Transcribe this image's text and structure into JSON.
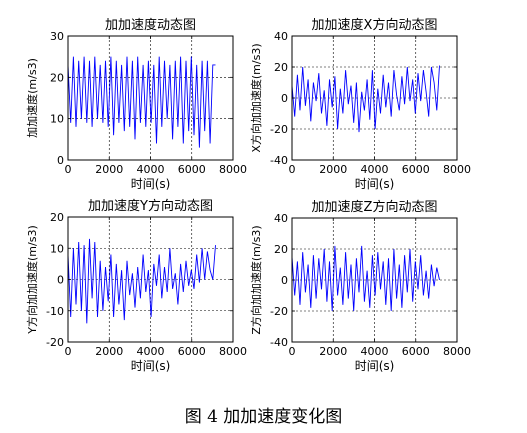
{
  "figure_caption": "图 4 加加速度变化图",
  "chart_data": [
    {
      "type": "line",
      "title": "加加速度动态图",
      "xlabel": "时间(s)",
      "ylabel": "加加速度(m/s3)",
      "xlim": [
        0,
        8000
      ],
      "ylim": [
        0,
        30
      ],
      "xticks": [
        0,
        2000,
        4000,
        6000,
        8000
      ],
      "yticks": [
        0,
        10,
        20,
        30
      ],
      "grid": true,
      "line_color": "#0000ff",
      "series": [
        {
          "x": [
            0,
            130,
            260,
            390,
            520,
            650,
            780,
            910,
            1040,
            1170,
            1300,
            1430,
            1560,
            1690,
            1820,
            1950,
            2080,
            2210,
            2340,
            2470,
            2600,
            2730,
            2860,
            2990,
            3120,
            3250,
            3380,
            3510,
            3640,
            3770,
            3900,
            4030,
            4160,
            4290,
            4420,
            4550,
            4680,
            4810,
            4940,
            5070,
            5200,
            5330,
            5460,
            5590,
            5720,
            5850,
            5980,
            6110,
            6240,
            6370,
            6500,
            6630,
            6760,
            6890,
            7020,
            7150
          ],
          "y": [
            23,
            9,
            25,
            8,
            24,
            10,
            25,
            9,
            24,
            8,
            25,
            10,
            23,
            9,
            24,
            8,
            25,
            6,
            24,
            9,
            23,
            7,
            25,
            8,
            24,
            5,
            25,
            9,
            23,
            8,
            24,
            9,
            23,
            4,
            25,
            8,
            24,
            10,
            23,
            5,
            24,
            8,
            25,
            4,
            24,
            7,
            25,
            6,
            23,
            3,
            24,
            7,
            24,
            4,
            23,
            23
          ]
        }
      ]
    },
    {
      "type": "line",
      "title": "加加速度X方向动态图",
      "xlabel": "时间(s)",
      "ylabel": "X方向加加速度(m/s3)",
      "xlim": [
        0,
        8000
      ],
      "ylim": [
        -40,
        40
      ],
      "xticks": [
        0,
        2000,
        4000,
        6000,
        8000
      ],
      "yticks": [
        -40,
        -20,
        0,
        20,
        40
      ],
      "grid": true,
      "line_color": "#0000ff",
      "series": [
        {
          "x": [
            0,
            130,
            260,
            390,
            520,
            650,
            780,
            910,
            1040,
            1170,
            1300,
            1430,
            1560,
            1690,
            1820,
            1950,
            2080,
            2210,
            2340,
            2470,
            2600,
            2730,
            2860,
            2990,
            3120,
            3250,
            3380,
            3510,
            3640,
            3770,
            3900,
            4030,
            4160,
            4290,
            4420,
            4550,
            4680,
            4810,
            4940,
            5070,
            5200,
            5330,
            5460,
            5590,
            5720,
            5850,
            5980,
            6110,
            6240,
            6370,
            6500,
            6630,
            6760,
            6890,
            7020,
            7150
          ],
          "y": [
            8,
            -12,
            15,
            -8,
            20,
            -5,
            12,
            -15,
            10,
            -2,
            16,
            -10,
            5,
            -18,
            12,
            -6,
            14,
            -20,
            6,
            -10,
            18,
            -4,
            8,
            -16,
            10,
            -22,
            4,
            -8,
            12,
            -14,
            18,
            -20,
            6,
            -10,
            15,
            -6,
            10,
            -12,
            18,
            2,
            -8,
            14,
            -4,
            20,
            -2,
            12,
            -10,
            16,
            -2,
            18,
            4,
            -12,
            20,
            10,
            -8,
            21
          ]
        }
      ]
    },
    {
      "type": "line",
      "title": "加加速度Y方向动态图",
      "xlabel": "时间(s)",
      "ylabel": "Y方向加加速度(m/s3)",
      "xlim": [
        0,
        8000
      ],
      "ylim": [
        -20,
        20
      ],
      "xticks": [
        0,
        2000,
        4000,
        6000,
        8000
      ],
      "yticks": [
        -20,
        -10,
        0,
        10,
        20
      ],
      "grid": true,
      "line_color": "#0000ff",
      "series": [
        {
          "x": [
            0,
            130,
            260,
            390,
            520,
            650,
            780,
            910,
            1040,
            1170,
            1300,
            1430,
            1560,
            1690,
            1820,
            1950,
            2080,
            2210,
            2340,
            2470,
            2600,
            2730,
            2860,
            2990,
            3120,
            3250,
            3380,
            3510,
            3640,
            3770,
            3900,
            4030,
            4160,
            4290,
            4420,
            4550,
            4680,
            4810,
            4940,
            5070,
            5200,
            5330,
            5460,
            5590,
            5720,
            5850,
            5980,
            6110,
            6240,
            6370,
            6500,
            6630,
            6760,
            6890,
            7020,
            7150
          ],
          "y": [
            8,
            -12,
            10,
            -8,
            12,
            -10,
            11,
            -14,
            13,
            -6,
            12,
            -12,
            6,
            -10,
            4,
            -7,
            8,
            -12,
            5,
            -8,
            3,
            -13,
            6,
            -5,
            2,
            -9,
            4,
            -6,
            8,
            -4,
            3,
            -12,
            5,
            -2,
            8,
            -6,
            4,
            -4,
            10,
            -3,
            2,
            -8,
            5,
            -4,
            6,
            -2,
            3,
            -3,
            8,
            -1,
            10,
            0,
            9,
            3,
            0,
            11
          ]
        }
      ]
    },
    {
      "type": "line",
      "title": "加加速度Z方向动态图",
      "xlabel": "时间(s)",
      "ylabel": "Z方向加加速度(m/s3)",
      "xlim": [
        0,
        8000
      ],
      "ylim": [
        -40,
        40
      ],
      "xticks": [
        0,
        2000,
        4000,
        6000,
        8000
      ],
      "yticks": [
        -40,
        -20,
        0,
        20,
        40
      ],
      "grid": true,
      "line_color": "#0000ff",
      "series": [
        {
          "x": [
            0,
            130,
            260,
            390,
            520,
            650,
            780,
            910,
            1040,
            1170,
            1300,
            1430,
            1560,
            1690,
            1820,
            1950,
            2080,
            2210,
            2340,
            2470,
            2600,
            2730,
            2860,
            2990,
            3120,
            3250,
            3380,
            3510,
            3640,
            3770,
            3900,
            4030,
            4160,
            4290,
            4420,
            4550,
            4680,
            4810,
            4940,
            5070,
            5200,
            5330,
            5460,
            5590,
            5720,
            5850,
            5980,
            6110,
            6240,
            6370,
            6500,
            6630,
            6760,
            6890,
            7020,
            7150
          ],
          "y": [
            15,
            -10,
            12,
            -16,
            18,
            -8,
            10,
            -18,
            16,
            -12,
            14,
            -6,
            20,
            -14,
            12,
            -20,
            22,
            -10,
            8,
            -16,
            18,
            -12,
            10,
            -20,
            14,
            -8,
            22,
            -14,
            6,
            -18,
            16,
            -10,
            18,
            -6,
            12,
            -16,
            14,
            -20,
            20,
            -12,
            10,
            -18,
            16,
            -8,
            20,
            -14,
            12,
            -6,
            16,
            -10,
            6,
            -12,
            10,
            -4,
            8,
            0
          ]
        }
      ]
    }
  ]
}
